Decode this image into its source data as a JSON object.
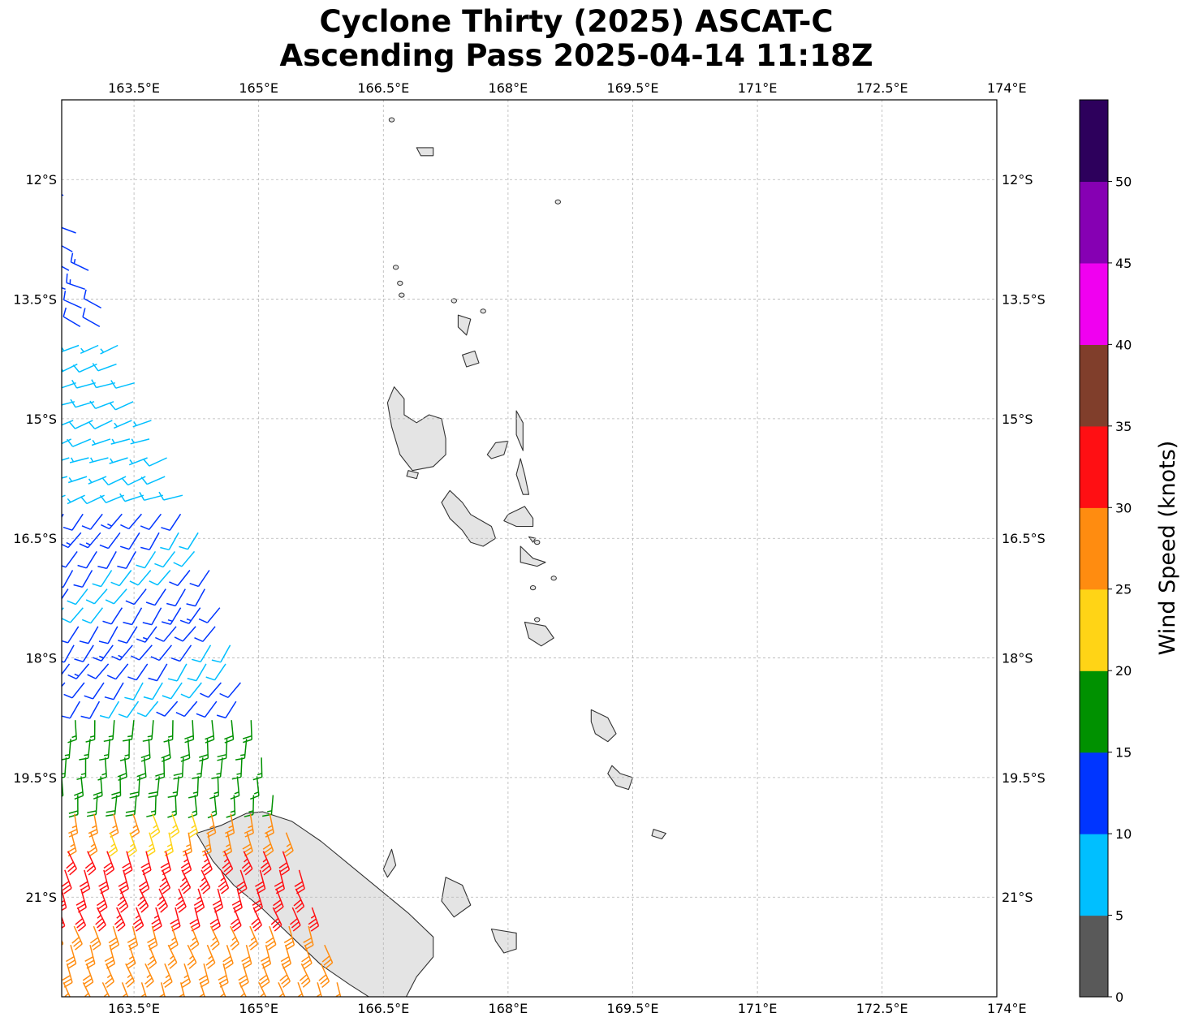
{
  "header": {
    "title_line1": "Cyclone Thirty (2025) ASCAT-C",
    "title_line2": "Ascending Pass 2025-04-14 11:18Z"
  },
  "map": {
    "lon_range": [
      162.63,
      173.88
    ],
    "lat_range": [
      -22.25,
      -11.0
    ],
    "lon_ticks": [
      "163.5°E",
      "165°E",
      "166.5°E",
      "168°E",
      "169.5°E",
      "171°E",
      "172.5°E",
      "174°E"
    ],
    "lon_tick_values": [
      163.5,
      165,
      166.5,
      168,
      169.5,
      171,
      172.5,
      174
    ],
    "lat_ticks": [
      "12°S",
      "13.5°S",
      "15°S",
      "16.5°S",
      "18°S",
      "19.5°S",
      "21°S"
    ],
    "lat_tick_values": [
      -12,
      -13.5,
      -15,
      -16.5,
      -18,
      -19.5,
      -21
    ],
    "gridlines": true,
    "land_fill": "#e4e4e4",
    "coast_color": "#333333"
  },
  "colorbar": {
    "label": "Wind Speed (knots)",
    "ticks": [
      "0",
      "5",
      "10",
      "15",
      "20",
      "25",
      "30",
      "35",
      "40",
      "45",
      "50"
    ],
    "bins": [
      {
        "min": 0,
        "max": 5,
        "color": "#595959"
      },
      {
        "min": 5,
        "max": 10,
        "color": "#00bfff"
      },
      {
        "min": 10,
        "max": 15,
        "color": "#0035ff"
      },
      {
        "min": 15,
        "max": 20,
        "color": "#009100"
      },
      {
        "min": 20,
        "max": 25,
        "color": "#ffd416"
      },
      {
        "min": 25,
        "max": 30,
        "color": "#ff8c10"
      },
      {
        "min": 30,
        "max": 35,
        "color": "#ff0f13"
      },
      {
        "min": 35,
        "max": 40,
        "color": "#803e2b"
      },
      {
        "min": 40,
        "max": 45,
        "color": "#f000f0"
      },
      {
        "min": 45,
        "max": 50,
        "color": "#8600b3"
      },
      {
        "min": 50,
        "max": 55,
        "color": "#2d005c"
      }
    ]
  },
  "wind_barbs": {
    "units": "knots",
    "swath_east_edge": [
      [
        -12.2,
        162.65
      ],
      [
        -13.6,
        163.1
      ],
      [
        -15.0,
        163.7
      ],
      [
        -16.5,
        164.3
      ],
      [
        -18.0,
        164.7
      ],
      [
        -19.5,
        165.1
      ],
      [
        -21.0,
        165.6
      ],
      [
        -22.25,
        166.0
      ]
    ],
    "regions": [
      {
        "lat": [
          -12.2,
          -13.9
        ],
        "speed": 12,
        "dir": 295
      },
      {
        "lat": [
          -13.9,
          -16.0
        ],
        "speed": 8,
        "dir": 250
      },
      {
        "lat": [
          -16.0,
          -18.6
        ],
        "speed": 11,
        "dir": 215
      },
      {
        "lat": [
          -18.6,
          -19.8
        ],
        "speed": 17,
        "dir": 180
      },
      {
        "lat": [
          -19.8,
          -20.4
        ],
        "speed": 26,
        "dir": 165
      },
      {
        "lat": [
          -20.4,
          -21.3
        ],
        "speed": 32,
        "dir": 160
      },
      {
        "lat": [
          -21.3,
          -22.25
        ],
        "speed": 28,
        "dir": 160
      }
    ]
  }
}
